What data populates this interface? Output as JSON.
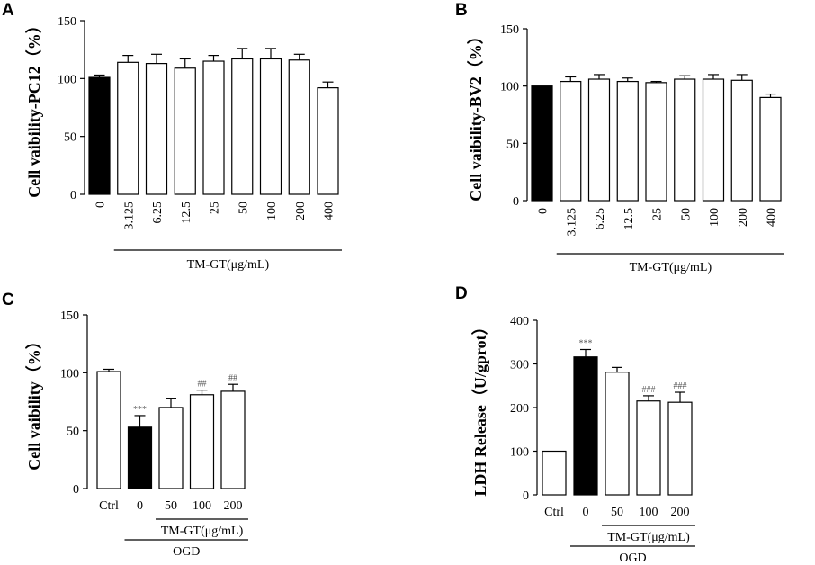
{
  "chart_data": [
    {
      "panel": "A",
      "type": "bar",
      "ylabel": "Cell vaibility-PC12（%）",
      "ylim": [
        0,
        150
      ],
      "yticks": [
        0,
        50,
        100,
        150
      ],
      "categories": [
        "0",
        "3.125",
        "6.25",
        "12.5",
        "25",
        "50",
        "100",
        "200",
        "400"
      ],
      "values": [
        101,
        114,
        113,
        109,
        115,
        117,
        117,
        116,
        92
      ],
      "errors": [
        2,
        6,
        8,
        8,
        5,
        9,
        9,
        5,
        5
      ],
      "fills": [
        "#000000",
        "#ffffff",
        "#ffffff",
        "#ffffff",
        "#ffffff",
        "#ffffff",
        "#ffffff",
        "#ffffff",
        "#ffffff"
      ],
      "significance": [
        "",
        "",
        "",
        "",
        "",
        "",
        "",
        "",
        ""
      ],
      "groups": [
        {
          "label": "TM-GT(μg/mL)",
          "from": 1,
          "to": 8
        }
      ]
    },
    {
      "panel": "B",
      "type": "bar",
      "ylabel": "Cell vaibility-BV2（%）",
      "ylim": [
        0,
        150
      ],
      "yticks": [
        0,
        50,
        100,
        150
      ],
      "categories": [
        "0",
        "3.125",
        "6.25",
        "12.5",
        "25",
        "50",
        "100",
        "200",
        "400"
      ],
      "values": [
        100,
        104,
        106,
        104,
        103,
        106,
        106,
        105,
        90
      ],
      "errors": [
        0,
        4,
        4,
        3,
        1,
        3,
        4,
        5,
        3
      ],
      "fills": [
        "#000000",
        "#ffffff",
        "#ffffff",
        "#ffffff",
        "#ffffff",
        "#ffffff",
        "#ffffff",
        "#ffffff",
        "#ffffff"
      ],
      "significance": [
        "",
        "",
        "",
        "",
        "",
        "",
        "",
        "",
        ""
      ],
      "groups": [
        {
          "label": "TM-GT(μg/mL)",
          "from": 1,
          "to": 8
        }
      ]
    },
    {
      "panel": "C",
      "type": "bar",
      "ylabel": "Cell vaibility（%）",
      "ylim": [
        0,
        150
      ],
      "yticks": [
        0,
        50,
        100,
        150
      ],
      "categories": [
        "Ctrl",
        "0",
        "50",
        "100",
        "200"
      ],
      "values": [
        101,
        53,
        70,
        81,
        84
      ],
      "errors": [
        2,
        10,
        8,
        4,
        6
      ],
      "fills": [
        "#ffffff",
        "#000000",
        "#ffffff",
        "#ffffff",
        "#ffffff"
      ],
      "significance": [
        "",
        "***",
        "",
        "##",
        "##"
      ],
      "groups": [
        {
          "label": "TM-GT(μg/mL)",
          "from": 2,
          "to": 4
        },
        {
          "label": "OGD",
          "from": 1,
          "to": 4
        }
      ]
    },
    {
      "panel": "D",
      "type": "bar",
      "ylabel": "LDH Release（U/gprot）",
      "ylim": [
        0,
        400
      ],
      "yticks": [
        0,
        100,
        200,
        300,
        400
      ],
      "categories": [
        "Ctrl",
        "0",
        "50",
        "100",
        "200"
      ],
      "values": [
        100,
        316,
        281,
        215,
        212
      ],
      "errors": [
        0,
        17,
        11,
        12,
        23
      ],
      "fills": [
        "#ffffff",
        "#000000",
        "#ffffff",
        "#ffffff",
        "#ffffff"
      ],
      "significance": [
        "",
        "***",
        "",
        "###",
        "###"
      ],
      "groups": [
        {
          "label": "TM-GT(μg/mL)",
          "from": 2,
          "to": 4
        },
        {
          "label": "OGD",
          "from": 1,
          "to": 4
        }
      ]
    }
  ]
}
